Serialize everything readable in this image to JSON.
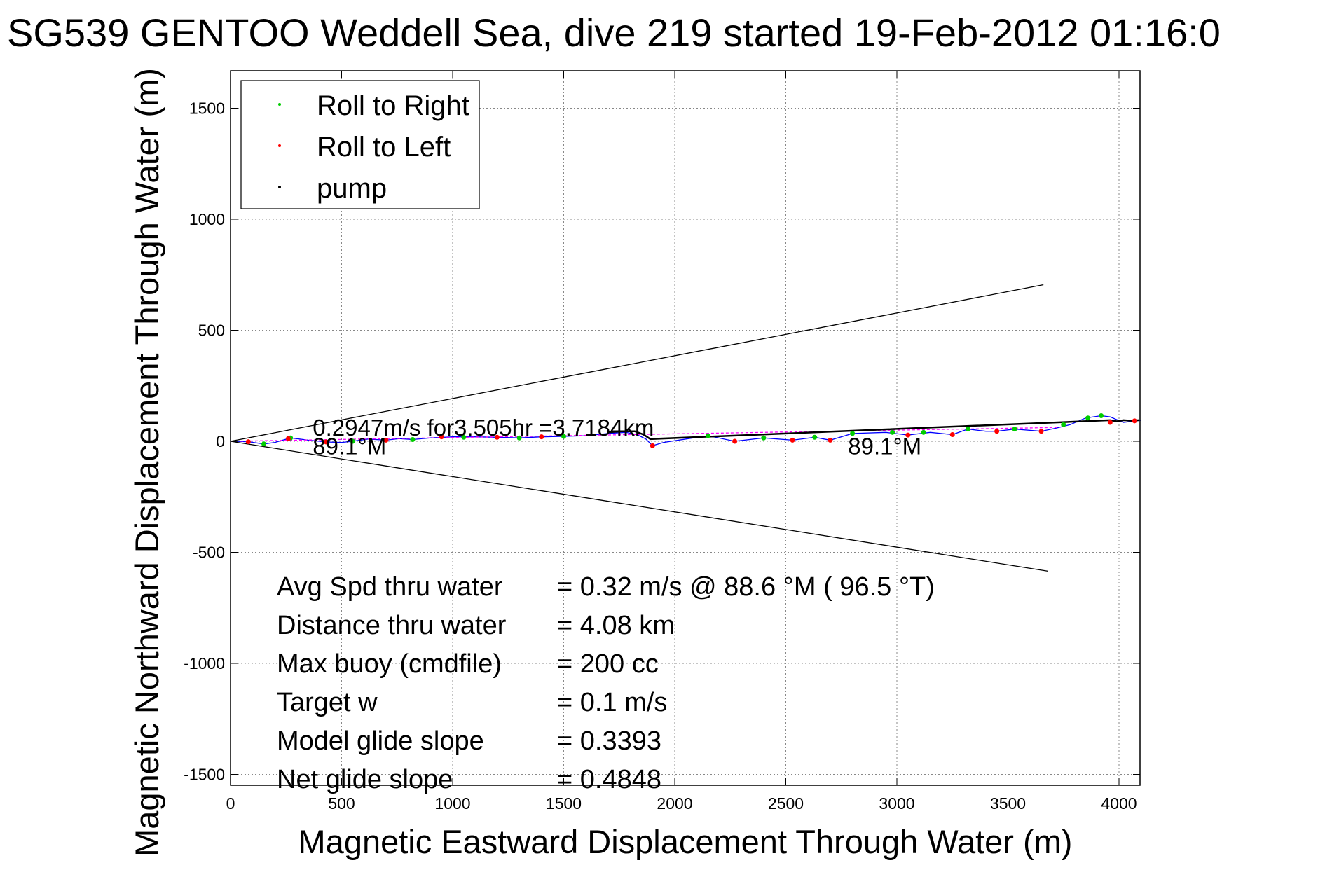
{
  "chart_data": {
    "type": "line",
    "title": "SG539 GENTOO Weddell Sea, dive 219 started 19-Feb-2012 01:16:0",
    "xlabel": "Magnetic Eastward Displacement Through Water (m)",
    "ylabel": "Magnetic Northward Displacement Through Water (m)",
    "xlim": [
      0,
      4100
    ],
    "ylim": [
      -1550,
      1650
    ],
    "xticks": [
      0,
      500,
      1000,
      1500,
      2000,
      2500,
      3000,
      3500,
      4000
    ],
    "yticks": [
      -1500,
      -1000,
      -500,
      0,
      500,
      1000,
      1500
    ],
    "xtick_labels": [
      "0",
      "500",
      "1000",
      "1500",
      "2000",
      "2500",
      "3000",
      "3500",
      "4000"
    ],
    "ytick_labels": [
      "-1500",
      "-1000",
      "-500",
      "0",
      "500",
      "1000",
      "1500"
    ],
    "grid": true,
    "legend_position": "top-left",
    "legend": [
      {
        "label": "Roll to Right",
        "color": "#00cc00"
      },
      {
        "label": "Roll to Left",
        "color": "#ff0000"
      },
      {
        "label": "pump",
        "color": "#000000"
      }
    ],
    "series": [
      {
        "name": "track",
        "color": "#0000ff",
        "x": [
          0,
          80,
          150,
          200,
          270,
          350,
          430,
          500,
          550,
          620,
          700,
          760,
          820,
          900,
          1000,
          1100,
          1200,
          1300,
          1400,
          1500,
          1600,
          1700,
          1780,
          1830,
          1870,
          1900,
          1950,
          2050,
          2150,
          2270,
          2400,
          2530,
          2630,
          2700,
          2800,
          2950,
          3050,
          3150,
          3250,
          3320,
          3400,
          3450,
          3530,
          3650,
          3720,
          3780,
          3850,
          3920,
          3960,
          4020,
          4060,
          4100
        ],
        "y": [
          0,
          -2,
          -12,
          -5,
          15,
          5,
          -3,
          -5,
          0,
          10,
          5,
          12,
          8,
          15,
          20,
          20,
          18,
          15,
          20,
          22,
          25,
          35,
          40,
          30,
          10,
          -20,
          -5,
          10,
          25,
          0,
          15,
          5,
          18,
          5,
          35,
          40,
          28,
          40,
          30,
          55,
          45,
          45,
          55,
          45,
          60,
          75,
          105,
          115,
          110,
          85,
          90,
          95
        ]
      },
      {
        "name": "mean heading",
        "color": "#ff00ff",
        "x": [
          0,
          3720
        ],
        "y": [
          0,
          62
        ]
      },
      {
        "name": "pump",
        "color": "#000000",
        "x": [
          1700,
          1760,
          1820,
          1860,
          1890,
          3960,
          3990,
          4020,
          4060,
          4090
        ],
        "y": [
          40,
          45,
          45,
          30,
          10,
          95,
          90,
          95,
          92,
          95
        ]
      },
      {
        "name": "cone upper",
        "color": "#000000",
        "x": [
          0,
          3660
        ],
        "y": [
          0,
          705
        ]
      },
      {
        "name": "cone lower",
        "color": "#000000",
        "x": [
          0,
          3680
        ],
        "y": [
          0,
          -585
        ]
      }
    ],
    "points": {
      "roll_right": {
        "x": [
          150,
          270,
          550,
          820,
          1050,
          1300,
          1500,
          2150,
          2400,
          2630,
          2800,
          2980,
          3120,
          3320,
          3530,
          3750,
          3860,
          3920
        ],
        "y": [
          -12,
          15,
          0,
          8,
          18,
          15,
          22,
          25,
          15,
          18,
          35,
          40,
          40,
          55,
          55,
          75,
          105,
          115
        ]
      },
      "roll_left": {
        "x": [
          80,
          260,
          430,
          700,
          950,
          1200,
          1400,
          1900,
          2270,
          2530,
          2700,
          3050,
          3250,
          3450,
          3650,
          3960,
          4070
        ],
        "y": [
          -2,
          12,
          -3,
          5,
          20,
          18,
          20,
          -20,
          0,
          5,
          5,
          28,
          30,
          45,
          45,
          85,
          92
        ]
      }
    },
    "annotations": [
      {
        "text": "0.2947m/s for3.505hr =3.7184km",
        "x": 370,
        "y": 25
      },
      {
        "text": "89.1°M",
        "x": 370,
        "y": -58
      },
      {
        "text": "89.1°M",
        "x": 2780,
        "y": -58
      }
    ],
    "stats": [
      {
        "label": "Avg Spd thru water",
        "value": "=  0.32 m/s @  88.6 °M ( 96.5 °T)"
      },
      {
        "label": "Distance thru water",
        "value": "=  4.08 km"
      },
      {
        "label": "Max buoy (cmdfile)",
        "value": "= 200 cc"
      },
      {
        "label": "Target w",
        "value": "= 0.1 m/s"
      },
      {
        "label": "Model glide slope",
        "value": "= 0.3393"
      },
      {
        "label": "Net glide slope",
        "value": "= 0.4848"
      }
    ]
  }
}
